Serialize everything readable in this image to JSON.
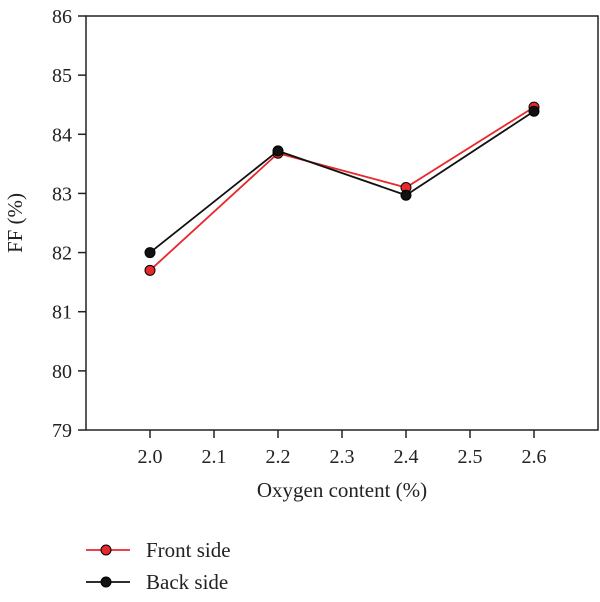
{
  "chart_data": {
    "type": "line",
    "title": "",
    "xlabel": "Oxygen content (%)",
    "ylabel": "FF (%)",
    "xlim": [
      1.9,
      2.7
    ],
    "ylim": [
      79,
      86
    ],
    "x_ticks": [
      "2.0",
      "2.1",
      "2.2",
      "2.3",
      "2.4",
      "2.5",
      "2.6"
    ],
    "y_ticks": [
      "79",
      "80",
      "81",
      "82",
      "83",
      "84",
      "85",
      "86"
    ],
    "grid": false,
    "legend_position": "bottom-left",
    "series": [
      {
        "name": "Front side",
        "color": "#e8282c",
        "x": [
          2.0,
          2.2,
          2.4,
          2.6
        ],
        "y": [
          81.7,
          83.68,
          83.1,
          84.46
        ]
      },
      {
        "name": "Back side",
        "color": "#111111",
        "x": [
          2.0,
          2.2,
          2.4,
          2.6
        ],
        "y": [
          82.0,
          83.72,
          82.97,
          84.39
        ]
      }
    ]
  }
}
